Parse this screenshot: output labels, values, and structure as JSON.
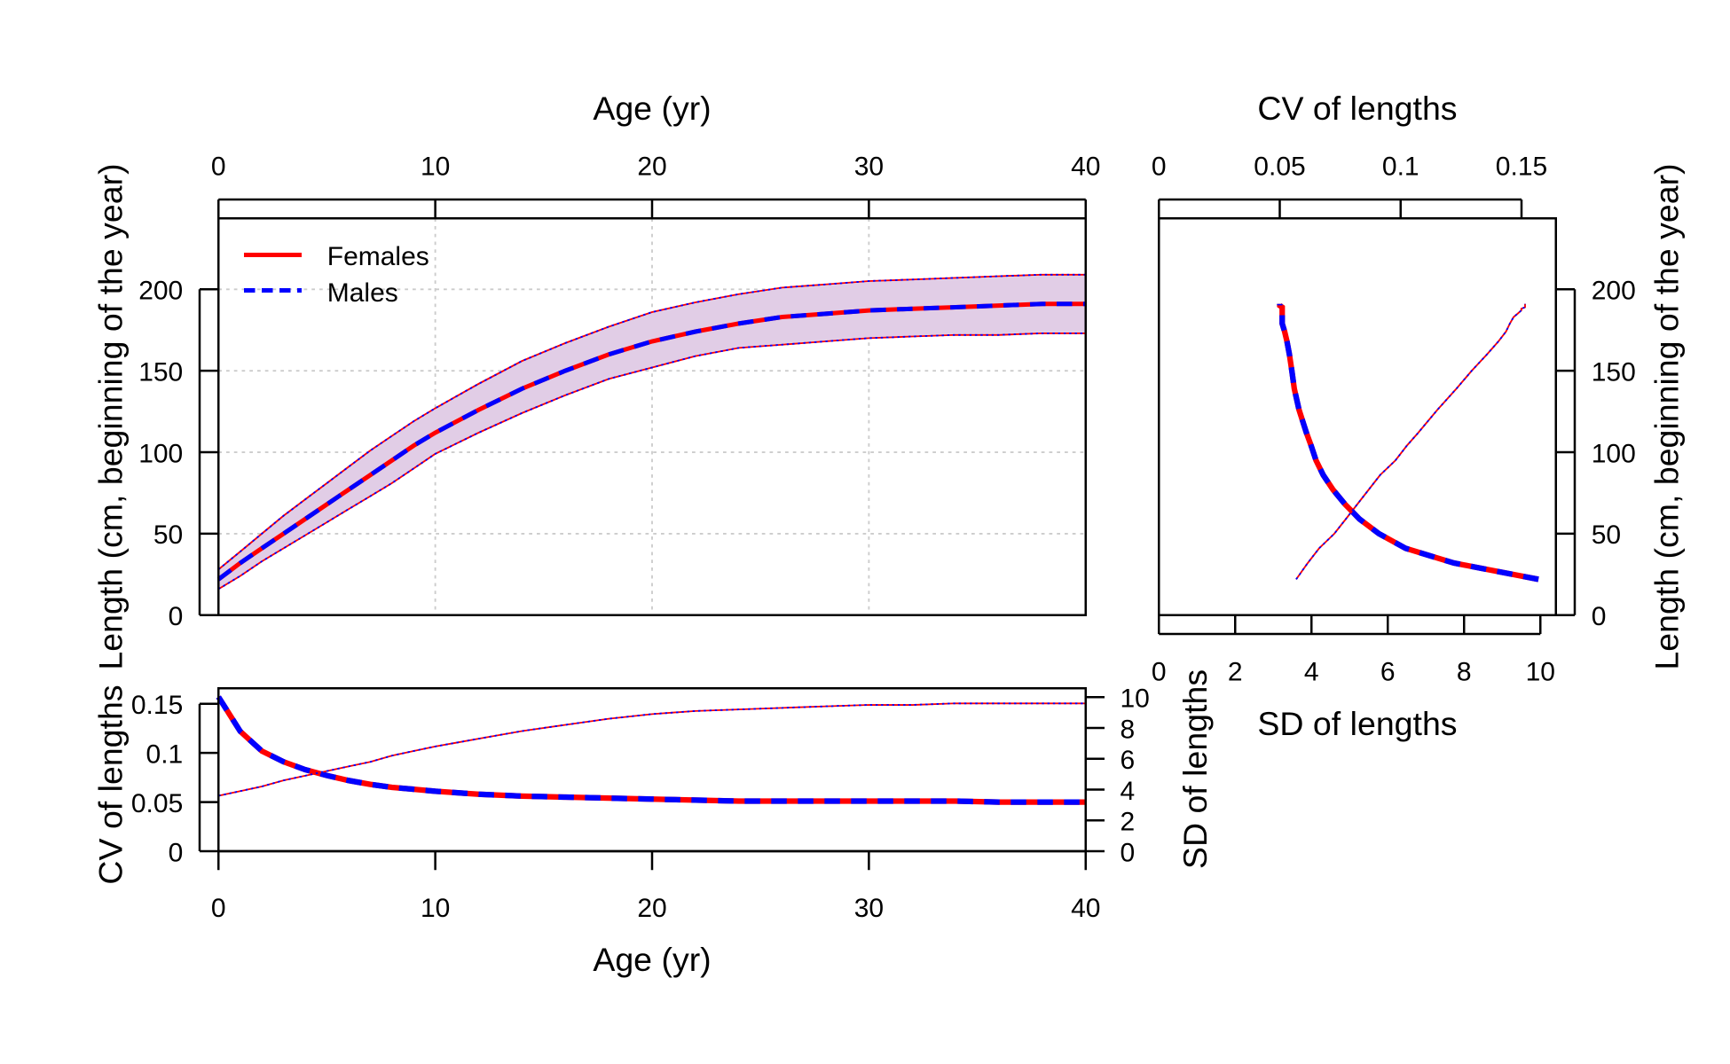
{
  "colors": {
    "females": "#ff0000",
    "males": "#0000ff",
    "band": "#e1cde6",
    "grid": "#cccccc"
  },
  "chart_data": [
    {
      "type": "line",
      "panel": "top-left",
      "xlabel": "Age (yr)",
      "ylabel": "Length (cm, beginning of the year)",
      "xlim": [
        0,
        40
      ],
      "ylim": [
        0,
        243
      ],
      "xticks": [
        "0",
        "10",
        "20",
        "30",
        "40"
      ],
      "yticks": [
        "0",
        "50",
        "100",
        "150",
        "200"
      ],
      "x_axis_position": "top",
      "grid": true,
      "legend": {
        "position": "top-left",
        "entries": [
          "Females",
          "Males"
        ]
      },
      "x": [
        0,
        1,
        2,
        3,
        4,
        5,
        6,
        7,
        8,
        9,
        10,
        12,
        14,
        16,
        18,
        20,
        22,
        24,
        26,
        28,
        30,
        32,
        34,
        36,
        38,
        40
      ],
      "series": [
        {
          "name": "Females",
          "mean": [
            22,
            32,
            41,
            50,
            59,
            68,
            77,
            86,
            95,
            104,
            112,
            126,
            139,
            150,
            160,
            168,
            174,
            179,
            183,
            185,
            187,
            188,
            189,
            190,
            191,
            191
          ],
          "upper": [
            28,
            39,
            50,
            61,
            71,
            81,
            91,
            101,
            110,
            119,
            127,
            142,
            156,
            167,
            177,
            186,
            192,
            197,
            201,
            203,
            205,
            206,
            207,
            208,
            209,
            209
          ],
          "lower": [
            16,
            24,
            33,
            41,
            49,
            57,
            65,
            73,
            81,
            90,
            99,
            112,
            124,
            135,
            145,
            152,
            159,
            164,
            166,
            168,
            170,
            171,
            172,
            172,
            173,
            173
          ]
        },
        {
          "name": "Males",
          "mean": [
            22,
            32,
            41,
            50,
            59,
            68,
            77,
            86,
            95,
            104,
            112,
            126,
            139,
            150,
            160,
            168,
            174,
            179,
            183,
            185,
            187,
            188,
            189,
            190,
            191,
            191
          ],
          "upper": [
            28,
            39,
            50,
            61,
            71,
            81,
            91,
            101,
            110,
            119,
            127,
            142,
            156,
            167,
            177,
            186,
            192,
            197,
            201,
            203,
            205,
            206,
            207,
            208,
            209,
            209
          ],
          "lower": [
            16,
            24,
            33,
            41,
            49,
            57,
            65,
            73,
            81,
            90,
            99,
            112,
            124,
            135,
            145,
            152,
            159,
            164,
            166,
            168,
            170,
            171,
            172,
            172,
            173,
            173
          ]
        }
      ]
    },
    {
      "type": "line",
      "panel": "bottom-left",
      "xlabel": "Age (yr)",
      "ylabel": "CV of lengths",
      "y2label": "SD of lengths",
      "xlim": [
        0,
        40
      ],
      "ylim": [
        0,
        0.166
      ],
      "y2lim": [
        0,
        11.1
      ],
      "xticks": [
        "0",
        "10",
        "20",
        "30",
        "40"
      ],
      "yticks": [
        "0",
        "0.05",
        "0.1",
        "0.15"
      ],
      "y2ticks": [
        "0",
        "2",
        "4",
        "6",
        "8",
        "10"
      ],
      "x": [
        0,
        1,
        2,
        3,
        4,
        5,
        6,
        7,
        8,
        9,
        10,
        12,
        14,
        16,
        18,
        20,
        22,
        24,
        26,
        28,
        30,
        32,
        34,
        36,
        38,
        40
      ],
      "cv": [
        0.157,
        0.122,
        0.102,
        0.091,
        0.083,
        0.077,
        0.072,
        0.068,
        0.065,
        0.063,
        0.061,
        0.058,
        0.056,
        0.055,
        0.054,
        0.053,
        0.052,
        0.051,
        0.051,
        0.051,
        0.051,
        0.051,
        0.051,
        0.05,
        0.05,
        0.05
      ],
      "sd": [
        3.6,
        3.9,
        4.2,
        4.6,
        4.9,
        5.2,
        5.5,
        5.8,
        6.2,
        6.5,
        6.8,
        7.3,
        7.8,
        8.2,
        8.6,
        8.9,
        9.1,
        9.2,
        9.3,
        9.4,
        9.5,
        9.5,
        9.6,
        9.6,
        9.6,
        9.6
      ]
    },
    {
      "type": "line",
      "panel": "top-right",
      "xlabel": "SD of lengths",
      "x2label": "CV of lengths",
      "ylabel": "Length (cm, beginning of the year)",
      "xlim": [
        0,
        10.4
      ],
      "x2lim": [
        0,
        0.164
      ],
      "ylim": [
        0,
        243
      ],
      "xticks": [
        "0",
        "2",
        "4",
        "6",
        "8",
        "10"
      ],
      "x2ticks": [
        "0",
        "0.05",
        "0.1",
        "0.15"
      ],
      "yticks": [
        "0",
        "50",
        "100",
        "150",
        "200"
      ]
    }
  ]
}
